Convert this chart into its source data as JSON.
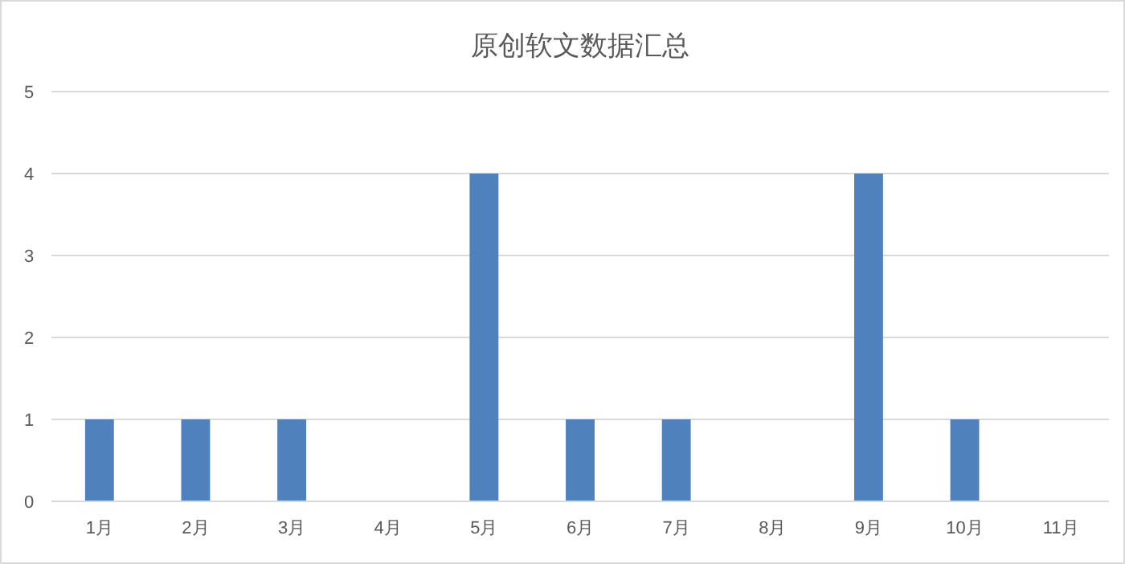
{
  "chart_data": {
    "type": "bar",
    "title": "原创软文数据汇总",
    "categories": [
      "1月",
      "2月",
      "3月",
      "4月",
      "5月",
      "6月",
      "7月",
      "8月",
      "9月",
      "10月",
      "11月"
    ],
    "values": [
      1,
      1,
      1,
      0,
      4,
      1,
      1,
      0,
      4,
      1,
      0
    ],
    "color": "#4f81bd",
    "ylim": [
      0,
      5
    ],
    "yticks": [
      0,
      1,
      2,
      3,
      4,
      5
    ],
    "grid": "y"
  }
}
